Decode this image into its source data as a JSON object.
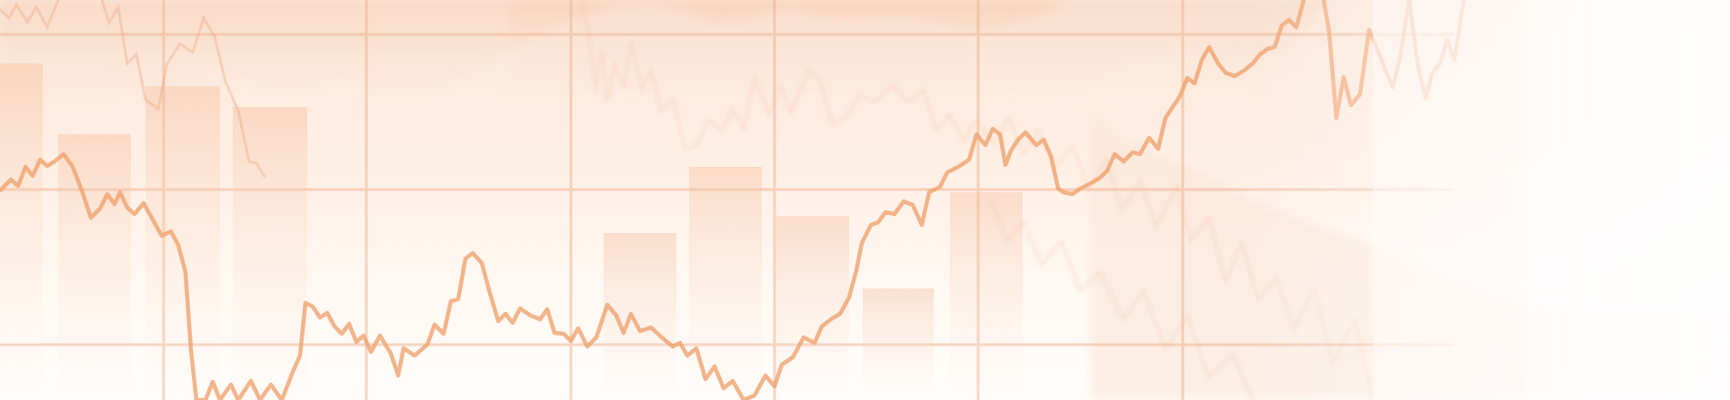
{
  "image": {
    "description_colors": {
      "background_top": "#fbe6d8",
      "background_bottom": "#fffdfb",
      "grid": "#f0b48b",
      "line": "#f1a873",
      "bar": "#f6c8a7",
      "haze": "#f4cfb6"
    },
    "visible_text": []
  }
}
